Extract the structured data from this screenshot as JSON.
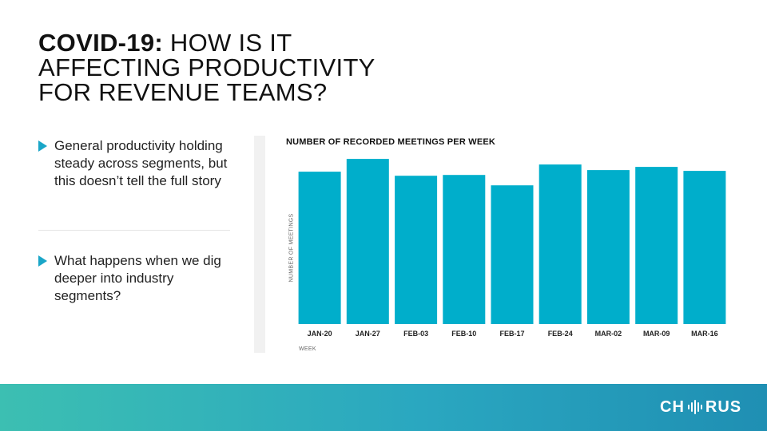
{
  "title": {
    "bold": "COVID-19:",
    "line1_rest": " HOW IS IT",
    "line2": "AFFECTING PRODUCTIVITY",
    "line3": "FOR REVENUE TEAMS?"
  },
  "bullets": [
    {
      "text": "General productivity holding steady across segments, but this doesn’t tell the full story"
    },
    {
      "text": "What happens when we dig deeper into industry segments?"
    }
  ],
  "brand": {
    "logo_left": "CH",
    "logo_right": "RUS",
    "logo_icon": "soundwave-icon"
  },
  "colors": {
    "bar": "#00aecb",
    "accent": "#1aa6c8"
  },
  "chart_data": {
    "type": "bar",
    "title": "NUMBER OF RECORDED MEETINGS PER WEEK",
    "xlabel": "WEEK",
    "ylabel": "NUMBER OF MEETINGS",
    "categories": [
      "JAN-20",
      "JAN-27",
      "FEB-03",
      "FEB-10",
      "FEB-17",
      "FEB-24",
      "MAR-02",
      "MAR-09",
      "MAR-16"
    ],
    "values": [
      95,
      103,
      92.5,
      93,
      86.5,
      99.5,
      96,
      98,
      95.5
    ],
    "ylim": [
      0,
      110
    ],
    "grid": false,
    "legend": "none"
  }
}
